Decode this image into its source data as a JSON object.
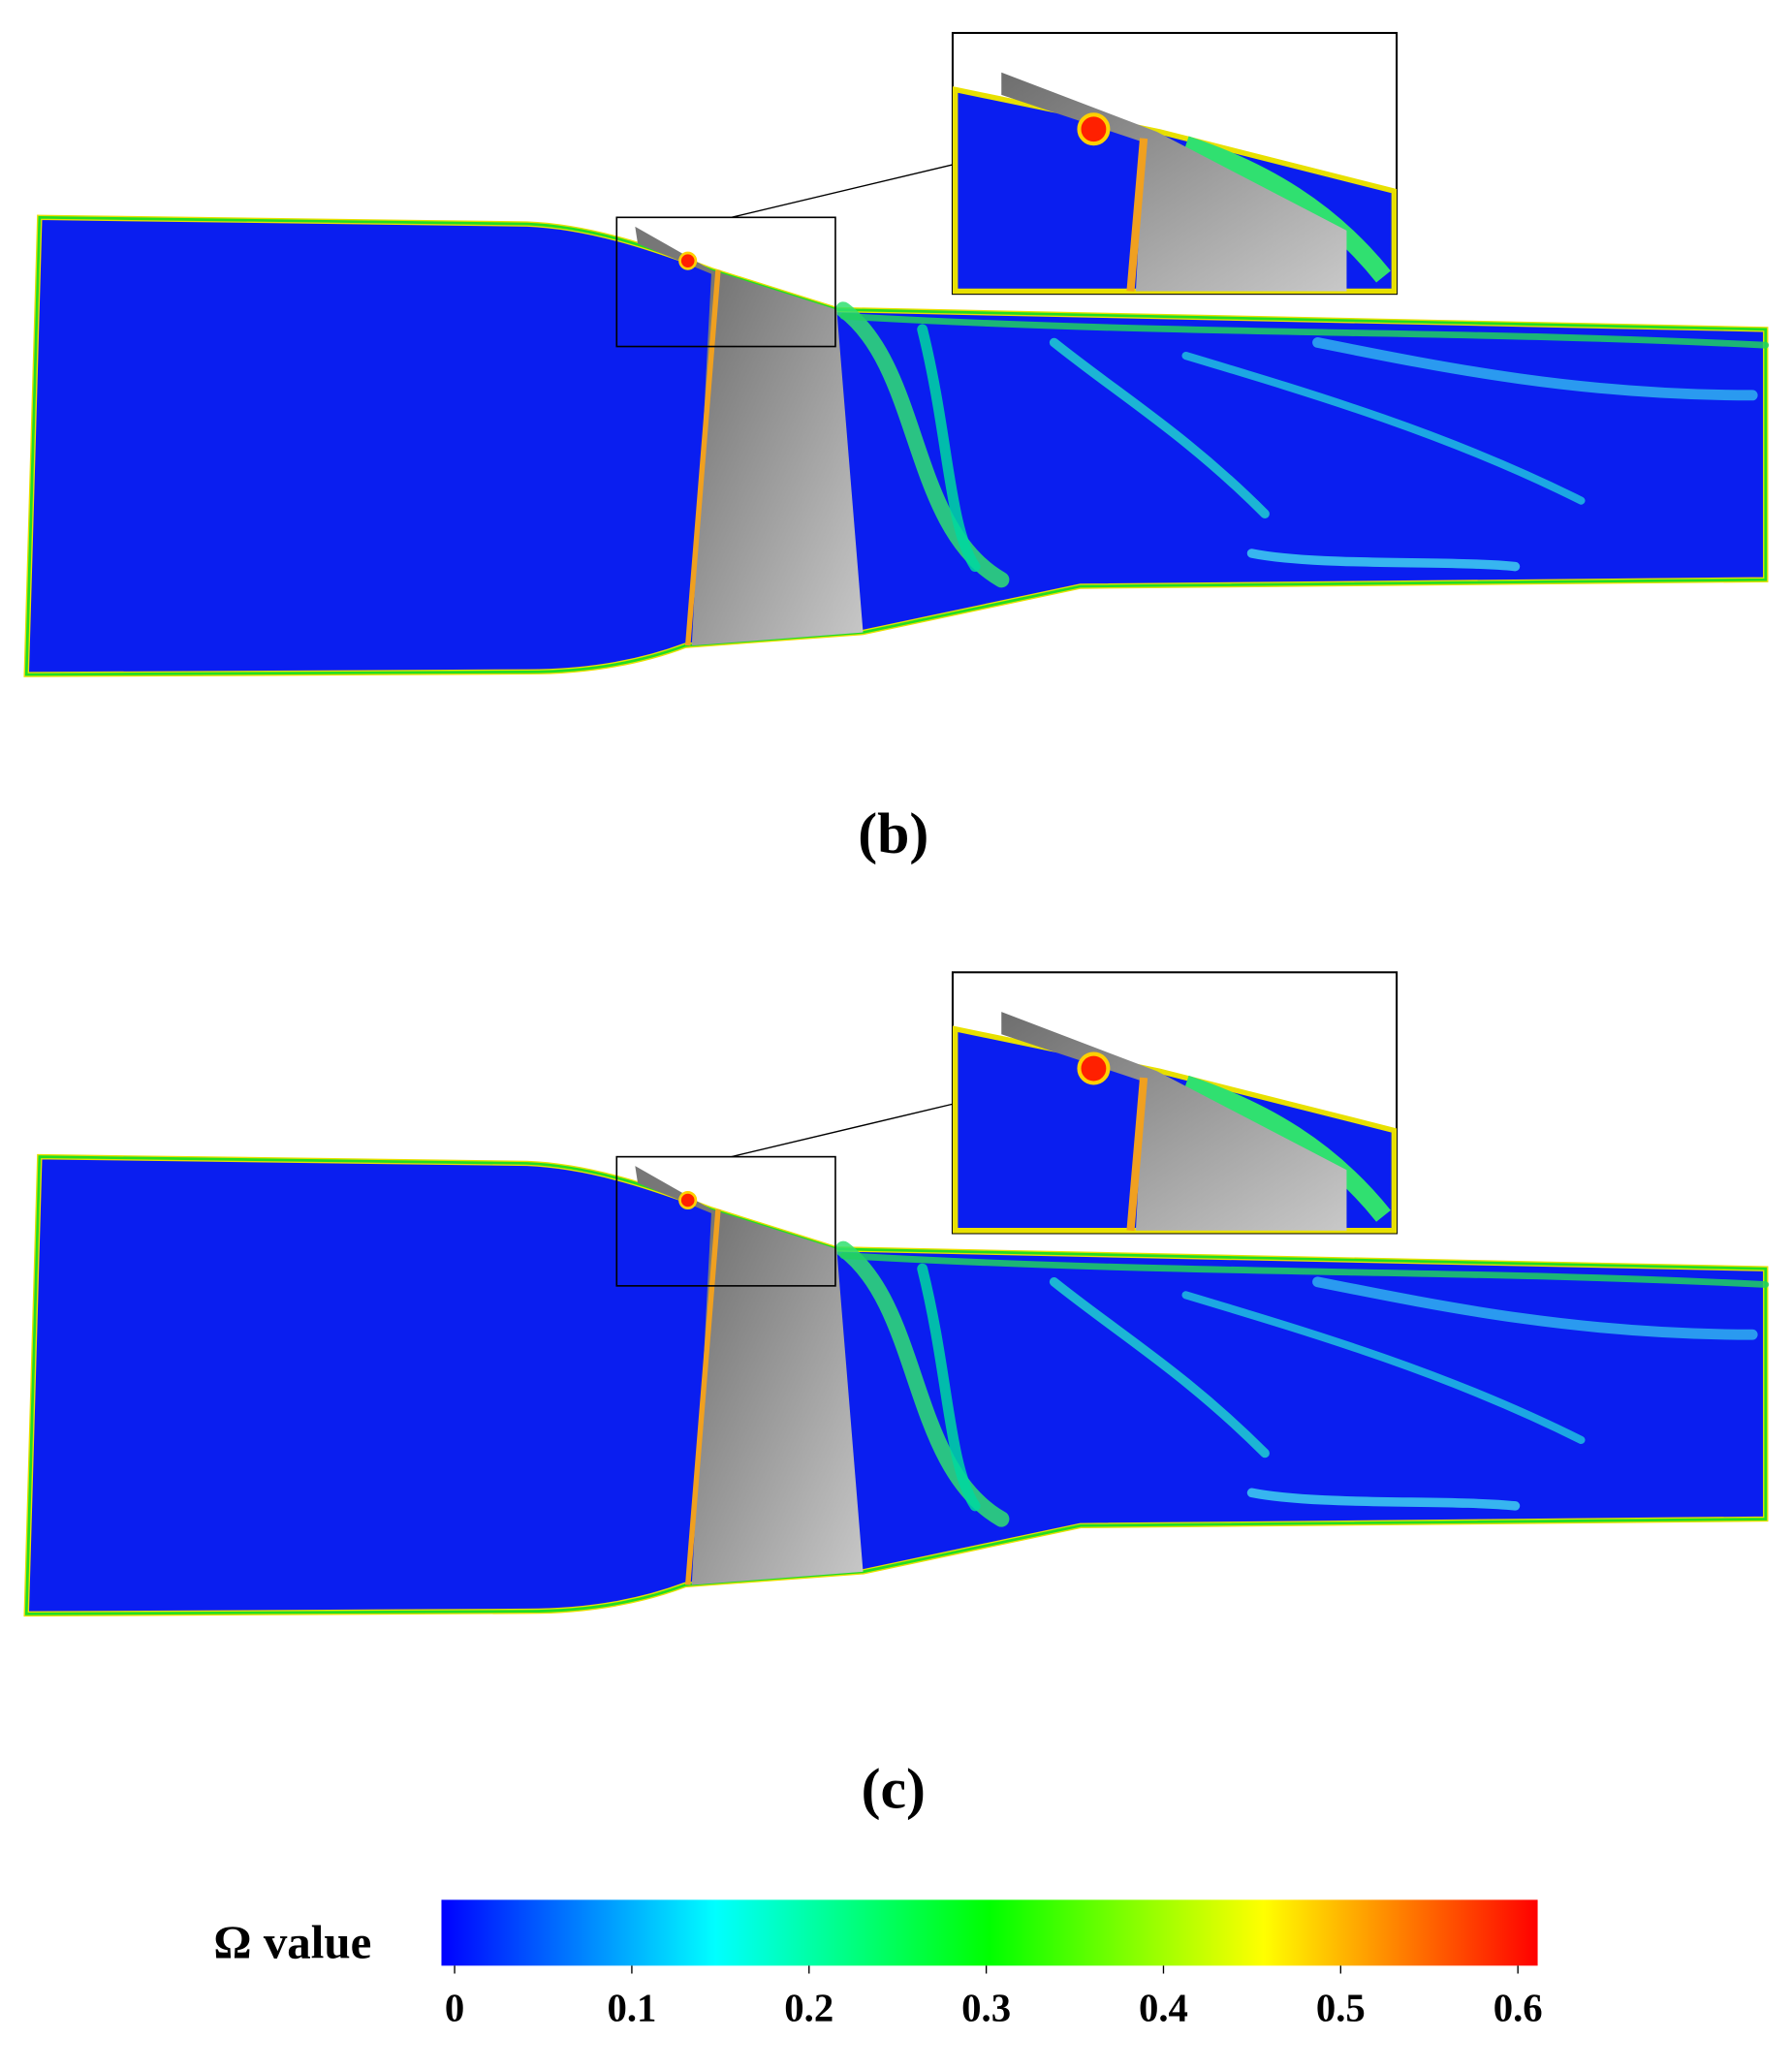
{
  "panels": [
    {
      "label": "(b)"
    },
    {
      "label": "(c)"
    }
  ],
  "colorbar": {
    "label": "Ω value",
    "range": [
      0,
      0.6
    ],
    "ticks": [
      0,
      0.1,
      0.2,
      0.3,
      0.4,
      0.5,
      0.6
    ],
    "colors": [
      "#0000ff",
      "#00ffff",
      "#00ff00",
      "#ffff00",
      "#ff0000"
    ]
  }
}
